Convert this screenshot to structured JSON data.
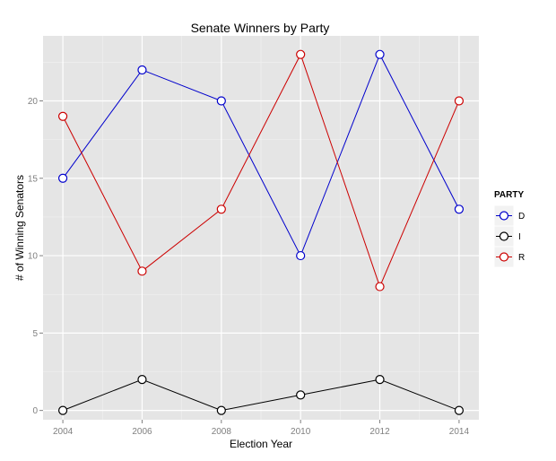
{
  "chart_data": {
    "type": "line",
    "title": "Senate Winners by Party",
    "xlabel": "Election Year",
    "ylabel": "# of Winning Senators",
    "x": [
      2004,
      2006,
      2008,
      2010,
      2012,
      2014
    ],
    "x_ticks": [
      "2004",
      "2006",
      "2008",
      "2010",
      "2012",
      "2014"
    ],
    "y_ticks": [
      "0",
      "5",
      "10",
      "15",
      "20"
    ],
    "xlim": [
      2003.5,
      2014.5
    ],
    "ylim": [
      -0.6,
      24.2
    ],
    "grid": true,
    "legend": {
      "title": "PARTY",
      "position": "right"
    },
    "series": [
      {
        "name": "D",
        "color": "#0000cc",
        "values": [
          15,
          22,
          20,
          10,
          23,
          13
        ]
      },
      {
        "name": "I",
        "color": "#000000",
        "values": [
          0,
          2,
          0,
          1,
          2,
          0
        ]
      },
      {
        "name": "R",
        "color": "#cc0000",
        "values": [
          19,
          9,
          13,
          23,
          8,
          20
        ]
      }
    ]
  }
}
